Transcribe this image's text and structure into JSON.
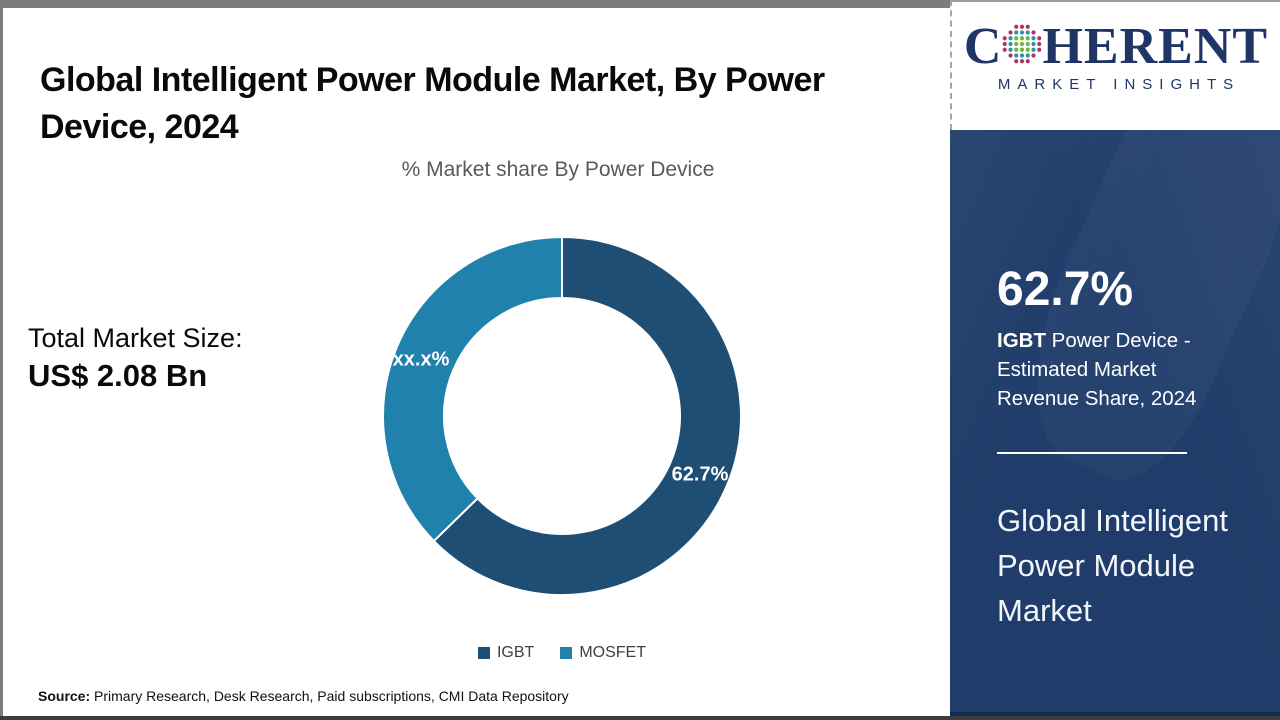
{
  "header": {
    "title": "Global Intelligent Power Module Market, By Power Device, 2024"
  },
  "chart_data": {
    "type": "pie",
    "donut": true,
    "title": "% Market share By Power Device",
    "categories": [
      "IGBT",
      "MOSFET"
    ],
    "values": [
      62.7,
      37.3
    ],
    "labels": [
      "62.7%",
      "xx.x%"
    ],
    "colors": [
      "#1F4E74",
      "#2081AC"
    ],
    "legend_position": "bottom",
    "start_angle": "top",
    "direction": "clockwise"
  },
  "left_panel": {
    "total_label": "Total Market Size:",
    "total_value": "US$ 2.08 Bn"
  },
  "footer": {
    "source_label": "Source:",
    "source_text": " Primary Research, Desk Research, Paid subscriptions, CMI Data Repository"
  },
  "sidebar": {
    "logo": {
      "brand_c": "C",
      "brand_rest": "HERENT",
      "tagline": "MARKET INSIGHTS",
      "globe_colors": {
        "core": "#6CB33F",
        "mid": "#2F8FA3",
        "rim": "#B03367"
      }
    },
    "stat_value": "62.7%",
    "stat_label_bold": "IGBT",
    "stat_label_rest": " Power Device - Estimated Market Revenue Share, 2024",
    "market_name": "Global Intelligent Power Module Market",
    "colors": {
      "background": "#1F3C6A",
      "text": "#FFFFFF"
    }
  }
}
